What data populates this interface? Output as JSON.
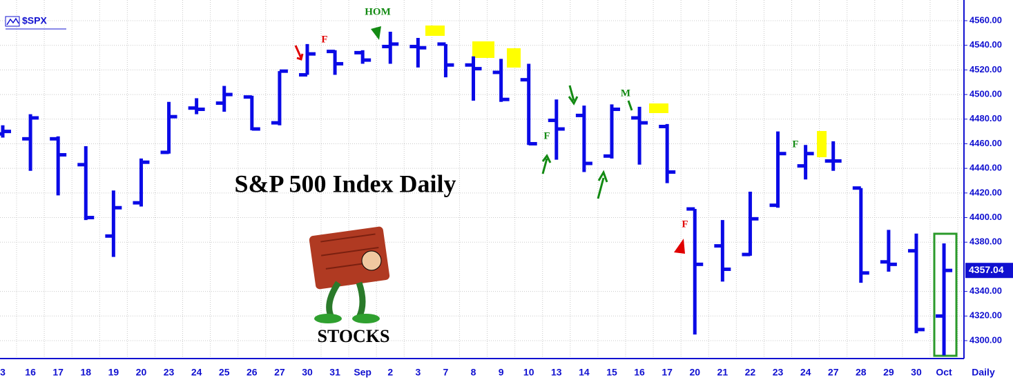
{
  "chart_data": {
    "type": "ohlc",
    "title": "S&P 500 Index Daily",
    "symbol": "$SPX",
    "period": "Daily",
    "caption": "STOCKS",
    "annotations": [
      "HOM",
      "F",
      "F",
      "F",
      "F",
      "M"
    ],
    "color": "#0a0ae6",
    "grid": true,
    "categories": [
      "3",
      "16",
      "17",
      "18",
      "19",
      "20",
      "23",
      "24",
      "25",
      "26",
      "27",
      "30",
      "31",
      "Sep",
      "2",
      "3",
      "7",
      "8",
      "9",
      "10",
      "13",
      "14",
      "15",
      "16",
      "17",
      "20",
      "21",
      "22",
      "23",
      "24",
      "27",
      "28",
      "29",
      "30",
      "Oct"
    ],
    "open": [
      4468,
      4464,
      4464,
      4443,
      4385,
      4412,
      4453,
      4489,
      4493,
      4498,
      4477,
      4516,
      4535,
      4534,
      4539,
      4539,
      4541,
      4524,
      4518,
      4512,
      4479,
      4483,
      4450,
      4481,
      4474,
      4407,
      4377,
      4370,
      4410,
      4442,
      4446,
      4424,
      4364,
      4373,
      4320
    ],
    "high": [
      4475,
      4484,
      4466,
      4458,
      4422,
      4448,
      4494,
      4497,
      4507,
      4499,
      4519,
      4541,
      4536,
      4536,
      4551,
      4546,
      4541,
      4531,
      4529,
      4525,
      4496,
      4491,
      4492,
      4490,
      4476,
      4407,
      4398,
      4421,
      4470,
      4459,
      4462,
      4424,
      4390,
      4387,
      4379
    ],
    "low": [
      4465,
      4438,
      4418,
      4398,
      4368,
      4409,
      4452,
      4484,
      4486,
      4471,
      4475,
      4516,
      4516,
      4525,
      4525,
      4522,
      4514,
      4495,
      4494,
      4459,
      4447,
      4437,
      4448,
      4443,
      4428,
      4305,
      4348,
      4369,
      4408,
      4431,
      4438,
      4347,
      4356,
      4306,
      4288
    ],
    "close": [
      4470,
      4481,
      4451,
      4400,
      4408,
      4445,
      4482,
      4488,
      4500,
      4472,
      4519,
      4533,
      4525,
      4528,
      4541,
      4538,
      4524,
      4521,
      4496,
      4460,
      4472,
      4444,
      4488,
      4477,
      4437,
      4362,
      4358,
      4399,
      4452,
      4452,
      4446,
      4355,
      4362,
      4309,
      4357.04
    ],
    "ylim": [
      4290,
      4562
    ],
    "yticks": [
      {
        "value": 4300,
        "label": "4300.00"
      },
      {
        "value": 4320,
        "label": "4320.00"
      },
      {
        "value": 4340,
        "label": "4340.00"
      },
      {
        "value": 4380,
        "label": "4380.00"
      },
      {
        "value": 4400,
        "label": "4400.00"
      },
      {
        "value": 4420,
        "label": "4420.00"
      },
      {
        "value": 4440,
        "label": "4440.00"
      },
      {
        "value": 4460,
        "label": "4460.00"
      },
      {
        "value": 4480,
        "label": "4480.00"
      },
      {
        "value": 4500,
        "label": "4500.00"
      },
      {
        "value": 4520,
        "label": "4520.00"
      },
      {
        "value": 4540,
        "label": "4540.00"
      },
      {
        "value": 4560,
        "label": "4560.00"
      }
    ]
  }
}
